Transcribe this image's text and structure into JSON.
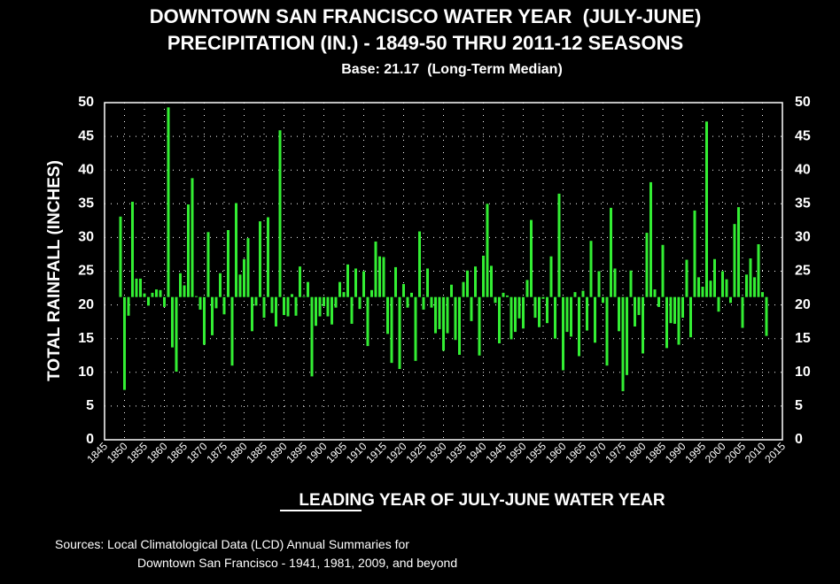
{
  "chart_data": {
    "type": "bar",
    "title": "DOWNTOWN SAN FRANCISCO WATER YEAR  (JULY-JUNE)",
    "title2": "PRECIPITATION (IN.) - 1849-50 THRU 2011-12 SEASONS",
    "subtitle": "Base: 21.17  (Long-Term Median)",
    "y_label": "TOTAL RAINFALL (INCHES)",
    "x_label": "LEADING YEAR OF JULY-JUNE WATER YEAR",
    "sources": [
      "Sources:  Local Climatological Data (LCD) Annual Summaries for",
      "Downtown San Francisco - 1941, 1981, 2009, and beyond"
    ],
    "base": 21.17,
    "color": "#33ee33",
    "grid": true,
    "xlim": [
      1845,
      2015
    ],
    "xticks": [
      1845,
      1850,
      1855,
      1860,
      1865,
      1870,
      1875,
      1880,
      1885,
      1890,
      1895,
      1900,
      1905,
      1910,
      1915,
      1920,
      1925,
      1930,
      1935,
      1940,
      1945,
      1950,
      1955,
      1960,
      1965,
      1970,
      1975,
      1980,
      1985,
      1990,
      1995,
      2000,
      2005,
      2010,
      2015
    ],
    "ylim": [
      0,
      50
    ],
    "yticks": [
      0,
      5,
      10,
      15,
      20,
      25,
      30,
      35,
      40,
      45,
      50
    ],
    "x": [
      1849,
      1850,
      1851,
      1852,
      1853,
      1854,
      1855,
      1856,
      1857,
      1858,
      1859,
      1860,
      1861,
      1862,
      1863,
      1864,
      1865,
      1866,
      1867,
      1868,
      1869,
      1870,
      1871,
      1872,
      1873,
      1874,
      1875,
      1876,
      1877,
      1878,
      1879,
      1880,
      1881,
      1882,
      1883,
      1884,
      1885,
      1886,
      1887,
      1888,
      1889,
      1890,
      1891,
      1892,
      1893,
      1894,
      1895,
      1896,
      1897,
      1898,
      1899,
      1900,
      1901,
      1902,
      1903,
      1904,
      1905,
      1906,
      1907,
      1908,
      1909,
      1910,
      1911,
      1912,
      1913,
      1914,
      1915,
      1916,
      1917,
      1918,
      1919,
      1920,
      1921,
      1922,
      1923,
      1924,
      1925,
      1926,
      1927,
      1928,
      1929,
      1930,
      1931,
      1932,
      1933,
      1934,
      1935,
      1936,
      1937,
      1938,
      1939,
      1940,
      1941,
      1942,
      1943,
      1944,
      1945,
      1946,
      1947,
      1948,
      1949,
      1950,
      1951,
      1952,
      1953,
      1954,
      1955,
      1956,
      1957,
      1958,
      1959,
      1960,
      1961,
      1962,
      1963,
      1964,
      1965,
      1966,
      1967,
      1968,
      1969,
      1970,
      1971,
      1972,
      1973,
      1974,
      1975,
      1976,
      1977,
      1978,
      1979,
      1980,
      1981,
      1982,
      1983,
      1984,
      1985,
      1986,
      1987,
      1988,
      1989,
      1990,
      1991,
      1992,
      1993,
      1994,
      1995,
      1996,
      1997,
      1998,
      1999,
      2000,
      2001,
      2002,
      2003,
      2004,
      2005,
      2006,
      2007,
      2008,
      2009,
      2010,
      2011
    ],
    "values": [
      33.1,
      7.4,
      18.4,
      35.3,
      23.9,
      23.9,
      21.7,
      19.9,
      21.8,
      22.3,
      22.2,
      19.7,
      49.3,
      13.7,
      10.1,
      24.7,
      22.9,
      34.9,
      38.8,
      21.3,
      19.3,
      14.1,
      30.8,
      15.5,
      19.5,
      24.7,
      18.6,
      31.1,
      11.0,
      35.1,
      24.5,
      26.8,
      29.9,
      16.1,
      19.9,
      32.4,
      18.1,
      33.0,
      18.8,
      16.8,
      45.9,
      18.5,
      18.3,
      21.6,
      18.4,
      25.7,
      21.3,
      23.4,
      9.4,
      16.9,
      18.3,
      19.8,
      18.3,
      17.1,
      19.6,
      23.4,
      21.9,
      26.0,
      17.2,
      25.4,
      19.4,
      25.0,
      13.9,
      22.2,
      29.4,
      27.2,
      27.1,
      15.7,
      11.4,
      25.6,
      10.5,
      23.1,
      19.6,
      21.8,
      11.7,
      30.9,
      19.3,
      25.4,
      19.6,
      15.8,
      16.4,
      13.2,
      15.8,
      23.0,
      14.8,
      12.6,
      23.4,
      25.1,
      17.6,
      25.7,
      12.5,
      27.3,
      35.0,
      25.8,
      20.3,
      14.3,
      21.8,
      21.4,
      14.9,
      16.0,
      18.0,
      16.5,
      23.7,
      32.6,
      18.1,
      16.7,
      20.9,
      17.3,
      27.2,
      15.0,
      36.5,
      10.3,
      16.0,
      15.3,
      21.9,
      12.4,
      22.1,
      16.2,
      29.5,
      14.4,
      25.0,
      20.3,
      11.0,
      34.4,
      25.4,
      16.1,
      7.2,
      9.6,
      25.1,
      16.8,
      18.5,
      12.8,
      30.7,
      38.2,
      22.3,
      19.7,
      28.9,
      13.6,
      17.3,
      17.2,
      14.1,
      18.1,
      26.7,
      15.2,
      34.0,
      24.1,
      22.7,
      47.2,
      23.6,
      26.8,
      19.0,
      25.0,
      23.8,
      20.3,
      32.0,
      34.5,
      16.6,
      24.5,
      26.9,
      24.1,
      29.0,
      21.9,
      15.4
    ]
  }
}
